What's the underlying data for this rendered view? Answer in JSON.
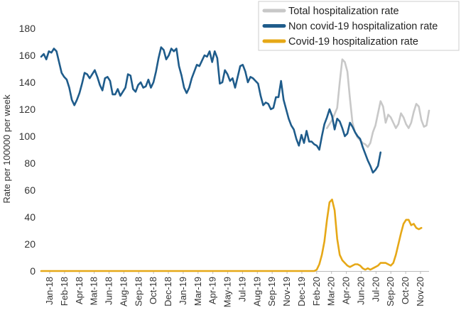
{
  "chart_data": {
    "type": "line",
    "title": "",
    "xlabel": "",
    "ylabel": "Rate per 100000 per week",
    "ylim": [
      0,
      180
    ],
    "yticks": [
      0,
      20,
      40,
      60,
      80,
      100,
      120,
      140,
      160,
      180
    ],
    "xticks": [
      "Jan-18",
      "Feb-18",
      "Apr-18",
      "Mat-18",
      "Jun-18",
      "Aug-18",
      "Sep-18",
      "Oct-18",
      "Dec-18",
      "Jan-19",
      "Mar-19",
      "Apr-19",
      "May-19",
      "Jul-19",
      "Aug-19",
      "Sep-19",
      "Nov-19",
      "Dec-19",
      "Feb-20",
      "Mar-20",
      "Apr-20",
      "Jun-20",
      "Jul-20",
      "Sep-20",
      "Oct-20",
      "Nov-20"
    ],
    "x_range_weeks": [
      0,
      152
    ],
    "legend_position": "top-right",
    "series": [
      {
        "name": "Total hospitalization rate",
        "color": "#c8c8c8",
        "points": [
          [
            112,
            106
          ],
          [
            114,
            112
          ],
          [
            116,
            121
          ],
          [
            117,
            140
          ],
          [
            118,
            157
          ],
          [
            119,
            155
          ],
          [
            120,
            148
          ],
          [
            121,
            128
          ],
          [
            122,
            110
          ],
          [
            123,
            103
          ],
          [
            124,
            99
          ],
          [
            125,
            97
          ],
          [
            126,
            95
          ],
          [
            127,
            94
          ],
          [
            128,
            92
          ],
          [
            129,
            95
          ],
          [
            130,
            103
          ],
          [
            131,
            108
          ],
          [
            132,
            117
          ],
          [
            133,
            126
          ],
          [
            134,
            122
          ],
          [
            135,
            110
          ],
          [
            136,
            116
          ],
          [
            137,
            114
          ],
          [
            138,
            110
          ],
          [
            139,
            106
          ],
          [
            140,
            109
          ],
          [
            141,
            117
          ],
          [
            142,
            114
          ],
          [
            143,
            109
          ],
          [
            144,
            106
          ],
          [
            145,
            110
          ],
          [
            146,
            118
          ],
          [
            147,
            124
          ],
          [
            148,
            122
          ],
          [
            149,
            112
          ],
          [
            150,
            107
          ],
          [
            151,
            108
          ],
          [
            152,
            119
          ]
        ]
      },
      {
        "name": "Non covid-19 hospitalization rate",
        "color": "#1f5c8b",
        "points": [
          [
            0,
            159
          ],
          [
            1,
            161
          ],
          [
            2,
            157
          ],
          [
            3,
            163
          ],
          [
            4,
            162
          ],
          [
            5,
            165
          ],
          [
            6,
            163
          ],
          [
            7,
            155
          ],
          [
            8,
            147
          ],
          [
            9,
            144
          ],
          [
            10,
            142
          ],
          [
            11,
            136
          ],
          [
            12,
            127
          ],
          [
            13,
            123
          ],
          [
            14,
            127
          ],
          [
            15,
            132
          ],
          [
            16,
            139
          ],
          [
            17,
            147
          ],
          [
            18,
            146
          ],
          [
            19,
            143
          ],
          [
            20,
            146
          ],
          [
            21,
            149
          ],
          [
            22,
            144
          ],
          [
            23,
            138
          ],
          [
            24,
            134
          ],
          [
            25,
            143
          ],
          [
            26,
            144
          ],
          [
            27,
            141
          ],
          [
            28,
            131
          ],
          [
            29,
            131
          ],
          [
            30,
            135
          ],
          [
            31,
            130
          ],
          [
            32,
            133
          ],
          [
            33,
            136
          ],
          [
            34,
            146
          ],
          [
            35,
            145
          ],
          [
            36,
            135
          ],
          [
            37,
            133
          ],
          [
            38,
            138
          ],
          [
            39,
            140
          ],
          [
            40,
            136
          ],
          [
            41,
            137
          ],
          [
            42,
            142
          ],
          [
            43,
            136
          ],
          [
            44,
            140
          ],
          [
            45,
            148
          ],
          [
            46,
            158
          ],
          [
            47,
            166
          ],
          [
            48,
            164
          ],
          [
            49,
            157
          ],
          [
            50,
            160
          ],
          [
            51,
            165
          ],
          [
            52,
            163
          ],
          [
            53,
            165
          ],
          [
            54,
            152
          ],
          [
            55,
            145
          ],
          [
            56,
            136
          ],
          [
            57,
            132
          ],
          [
            58,
            136
          ],
          [
            59,
            143
          ],
          [
            60,
            148
          ],
          [
            61,
            153
          ],
          [
            62,
            152
          ],
          [
            63,
            156
          ],
          [
            64,
            160
          ],
          [
            65,
            159
          ],
          [
            66,
            163
          ],
          [
            67,
            155
          ],
          [
            68,
            163
          ],
          [
            69,
            158
          ],
          [
            70,
            139
          ],
          [
            71,
            140
          ],
          [
            72,
            149
          ],
          [
            73,
            146
          ],
          [
            74,
            141
          ],
          [
            75,
            143
          ],
          [
            76,
            136
          ],
          [
            77,
            144
          ],
          [
            78,
            152
          ],
          [
            79,
            153
          ],
          [
            80,
            148
          ],
          [
            81,
            140
          ],
          [
            82,
            144
          ],
          [
            83,
            143
          ],
          [
            84,
            141
          ],
          [
            85,
            139
          ],
          [
            86,
            130
          ],
          [
            87,
            123
          ],
          [
            88,
            125
          ],
          [
            89,
            124
          ],
          [
            90,
            120
          ],
          [
            91,
            121
          ],
          [
            92,
            129
          ],
          [
            93,
            129
          ],
          [
            94,
            141
          ],
          [
            95,
            127
          ],
          [
            96,
            120
          ],
          [
            97,
            113
          ],
          [
            98,
            108
          ],
          [
            99,
            105
          ],
          [
            100,
            98
          ],
          [
            101,
            93
          ],
          [
            102,
            101
          ],
          [
            103,
            95
          ],
          [
            104,
            104
          ],
          [
            105,
            96
          ],
          [
            106,
            96
          ],
          [
            107,
            94
          ],
          [
            108,
            93
          ],
          [
            109,
            90
          ],
          [
            110,
            100
          ],
          [
            111,
            109
          ],
          [
            112,
            114
          ],
          [
            113,
            120
          ],
          [
            114,
            115
          ],
          [
            115,
            105
          ],
          [
            116,
            113
          ],
          [
            117,
            111
          ],
          [
            118,
            106
          ],
          [
            119,
            100
          ],
          [
            120,
            102
          ],
          [
            121,
            110
          ],
          [
            122,
            107
          ],
          [
            123,
            103
          ],
          [
            124,
            100
          ],
          [
            125,
            98
          ],
          [
            126,
            92
          ],
          [
            127,
            87
          ],
          [
            128,
            82
          ],
          [
            129,
            78
          ],
          [
            130,
            73
          ],
          [
            131,
            75
          ],
          [
            132,
            78
          ],
          [
            133,
            88
          ]
        ]
      },
      {
        "name": "Covid-19 hospitalization rate",
        "color": "#e6a817",
        "points": [
          [
            0,
            0
          ],
          [
            107,
            0
          ],
          [
            108,
            1
          ],
          [
            109,
            5
          ],
          [
            110,
            12
          ],
          [
            111,
            22
          ],
          [
            112,
            38
          ],
          [
            113,
            51
          ],
          [
            114,
            53
          ],
          [
            115,
            45
          ],
          [
            116,
            24
          ],
          [
            117,
            12
          ],
          [
            118,
            8
          ],
          [
            119,
            6
          ],
          [
            120,
            4
          ],
          [
            121,
            3
          ],
          [
            122,
            4
          ],
          [
            123,
            5
          ],
          [
            124,
            5
          ],
          [
            125,
            4
          ],
          [
            126,
            2
          ],
          [
            127,
            1
          ],
          [
            128,
            2
          ],
          [
            129,
            1
          ],
          [
            130,
            2
          ],
          [
            131,
            3
          ],
          [
            132,
            4
          ],
          [
            133,
            6
          ],
          [
            134,
            6
          ],
          [
            135,
            6
          ],
          [
            136,
            5
          ],
          [
            137,
            4
          ],
          [
            138,
            6
          ],
          [
            139,
            12
          ],
          [
            140,
            20
          ],
          [
            141,
            28
          ],
          [
            142,
            35
          ],
          [
            143,
            38
          ],
          [
            144,
            38
          ],
          [
            145,
            34
          ],
          [
            146,
            35
          ],
          [
            147,
            32
          ],
          [
            148,
            31
          ],
          [
            149,
            32
          ]
        ]
      }
    ]
  }
}
